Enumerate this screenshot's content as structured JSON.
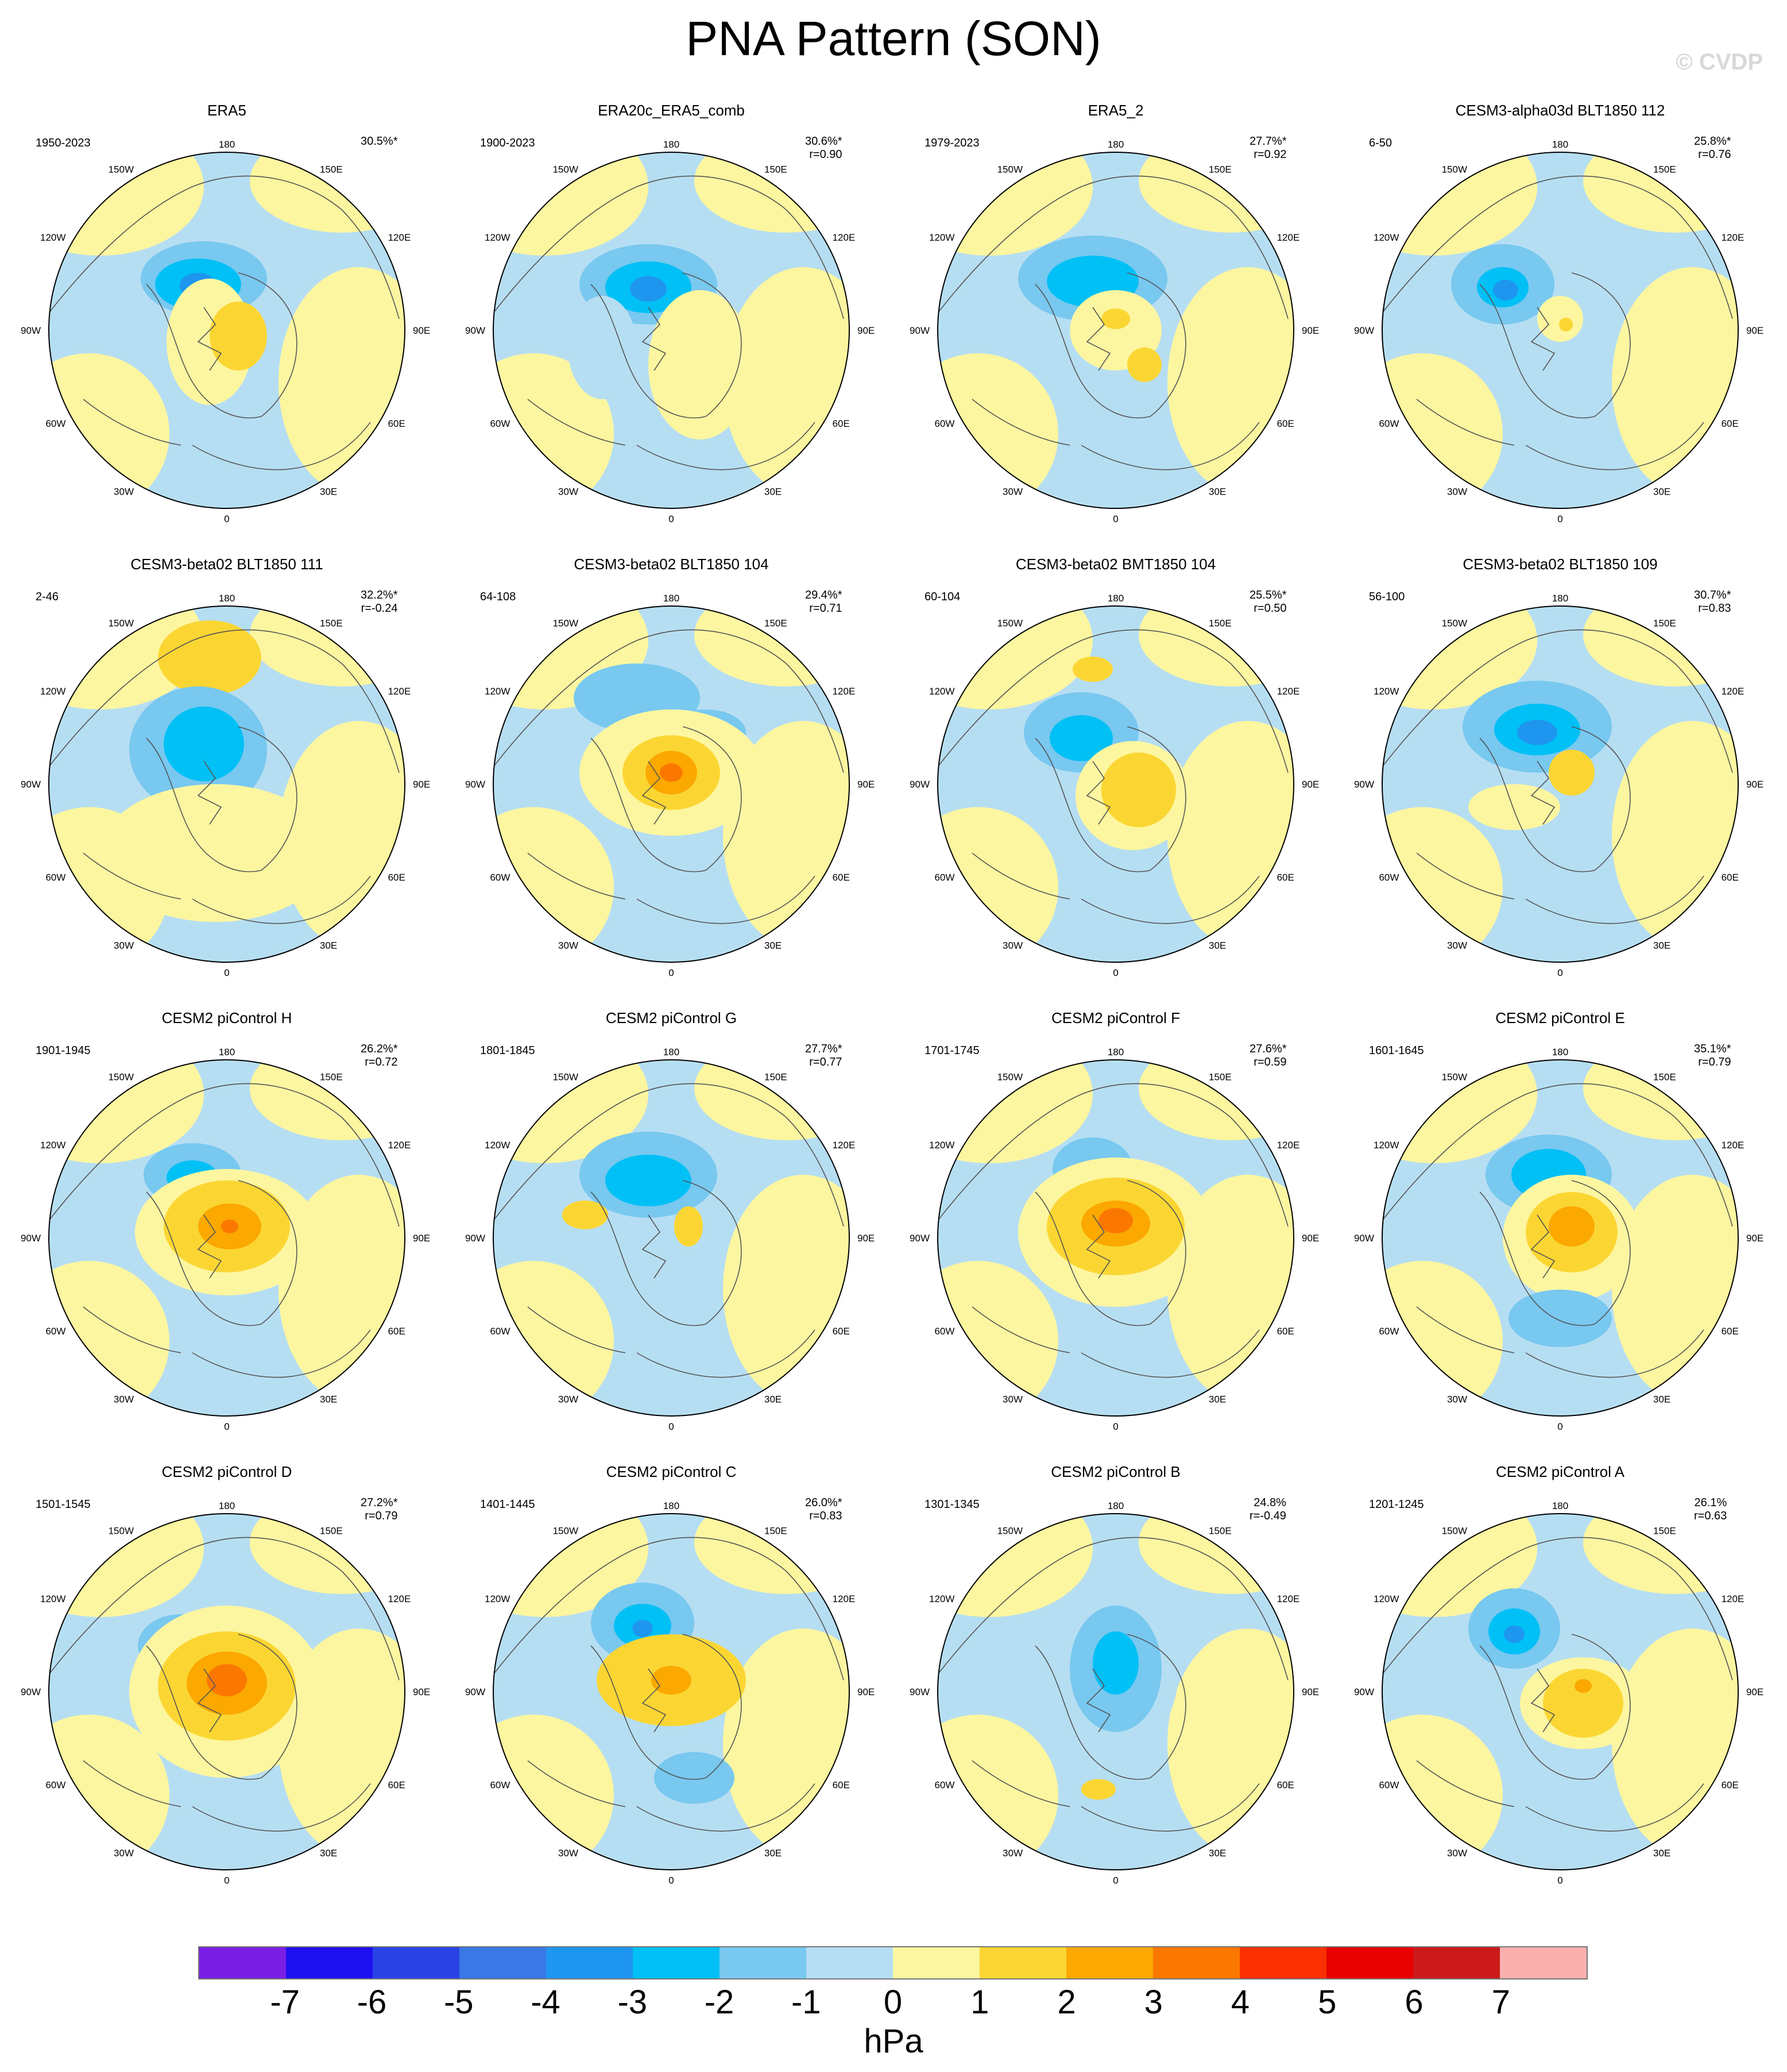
{
  "title": "PNA Pattern (SON)",
  "watermark": "© CVDP",
  "longitude_labels": {
    "top": "180",
    "bottom": "0",
    "left": [
      "150W",
      "120W",
      "90W",
      "60W",
      "30W"
    ],
    "right": [
      "150E",
      "120E",
      "90E",
      "60E",
      "30E"
    ]
  },
  "panels": [
    {
      "title": "ERA5",
      "period": "1950-2023",
      "pct": "30.5%*",
      "r": ""
    },
    {
      "title": "ERA20c_ERA5_comb",
      "period": "1900-2023",
      "pct": "30.6%*",
      "r": "r=0.90"
    },
    {
      "title": "ERA5_2",
      "period": "1979-2023",
      "pct": "27.7%*",
      "r": "r=0.92"
    },
    {
      "title": "CESM3-alpha03d BLT1850 112",
      "period": "6-50",
      "pct": "25.8%*",
      "r": "r=0.76"
    },
    {
      "title": "CESM3-beta02 BLT1850 111",
      "period": "2-46",
      "pct": "32.2%*",
      "r": "r=-0.24"
    },
    {
      "title": "CESM3-beta02 BLT1850 104",
      "period": "64-108",
      "pct": "29.4%*",
      "r": "r=0.71"
    },
    {
      "title": "CESM3-beta02 BMT1850 104",
      "period": "60-104",
      "pct": "25.5%*",
      "r": "r=0.50"
    },
    {
      "title": "CESM3-beta02 BLT1850 109",
      "period": "56-100",
      "pct": "30.7%*",
      "r": "r=0.83"
    },
    {
      "title": "CESM2 piControl H",
      "period": "1901-1945",
      "pct": "26.2%*",
      "r": "r=0.72"
    },
    {
      "title": "CESM2 piControl G",
      "period": "1801-1845",
      "pct": "27.7%*",
      "r": "r=0.77"
    },
    {
      "title": "CESM2 piControl F",
      "period": "1701-1745",
      "pct": "27.6%*",
      "r": "r=0.59"
    },
    {
      "title": "CESM2 piControl E",
      "period": "1601-1645",
      "pct": "35.1%*",
      "r": "r=0.79"
    },
    {
      "title": "CESM2 piControl D",
      "period": "1501-1545",
      "pct": "27.2%*",
      "r": "r=0.79"
    },
    {
      "title": "CESM2 piControl C",
      "period": "1401-1445",
      "pct": "26.0%*",
      "r": "r=0.83"
    },
    {
      "title": "CESM2 piControl B",
      "period": "1301-1345",
      "pct": "24.8%",
      "r": "r=-0.49"
    },
    {
      "title": "CESM2 piControl A",
      "period": "1201-1245",
      "pct": "26.1%",
      "r": "r=0.63"
    }
  ],
  "colorbar": {
    "unit": "hPa",
    "ticks": [
      "-7",
      "-6",
      "-5",
      "-4",
      "-3",
      "-2",
      "-1",
      "0",
      "1",
      "2",
      "3",
      "4",
      "5",
      "6",
      "7"
    ],
    "colors": [
      "#7a1ee6",
      "#1e10f0",
      "#2a43e6",
      "#3a78e6",
      "#1e96f0",
      "#00c0f5",
      "#78c8f0",
      "#b6def2",
      "#fdf6a0",
      "#fbd633",
      "#fba800",
      "#fb7800",
      "#fa3000",
      "#e80000",
      "#cc1a1a",
      "#fbb0b0"
    ]
  }
}
